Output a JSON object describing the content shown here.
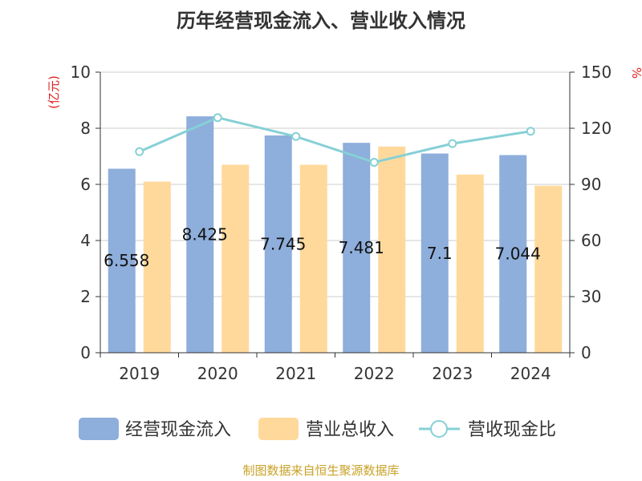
{
  "title": "历年经营现金流入、营业收入情况",
  "source": "制图数据来自恒生聚源数据库",
  "chart_data": {
    "type": "bar",
    "categories": [
      "2019",
      "2020",
      "2021",
      "2022",
      "2023",
      "2024"
    ],
    "series": [
      {
        "name": "经营现金流入",
        "type": "bar",
        "axis": "left",
        "color": "#8eaedb",
        "values": [
          6.558,
          8.425,
          7.745,
          7.481,
          7.1,
          7.044
        ],
        "labels": [
          "6.558",
          "8.425",
          "7.745",
          "7.481",
          "7.1",
          "7.044"
        ]
      },
      {
        "name": "营业总收入",
        "type": "bar",
        "axis": "left",
        "color": "#ffd99b",
        "values": [
          6.1,
          6.7,
          6.7,
          7.35,
          6.35,
          5.95
        ]
      },
      {
        "name": "营收现金比",
        "type": "line",
        "axis": "right",
        "color": "#86d0d6",
        "values": [
          107.5,
          125.7,
          115.6,
          101.8,
          111.8,
          118.4
        ]
      }
    ],
    "ylabel_left": "(亿元)",
    "ylabel_right": "%",
    "ylim_left": [
      0,
      10
    ],
    "ylim_right": [
      0,
      150
    ],
    "yticks_left": [
      "0",
      "2",
      "4",
      "6",
      "8",
      "10"
    ],
    "yticks_right": [
      "0",
      "30",
      "60",
      "90",
      "120",
      "150"
    ],
    "grid": true,
    "legend_position": "bottom"
  }
}
